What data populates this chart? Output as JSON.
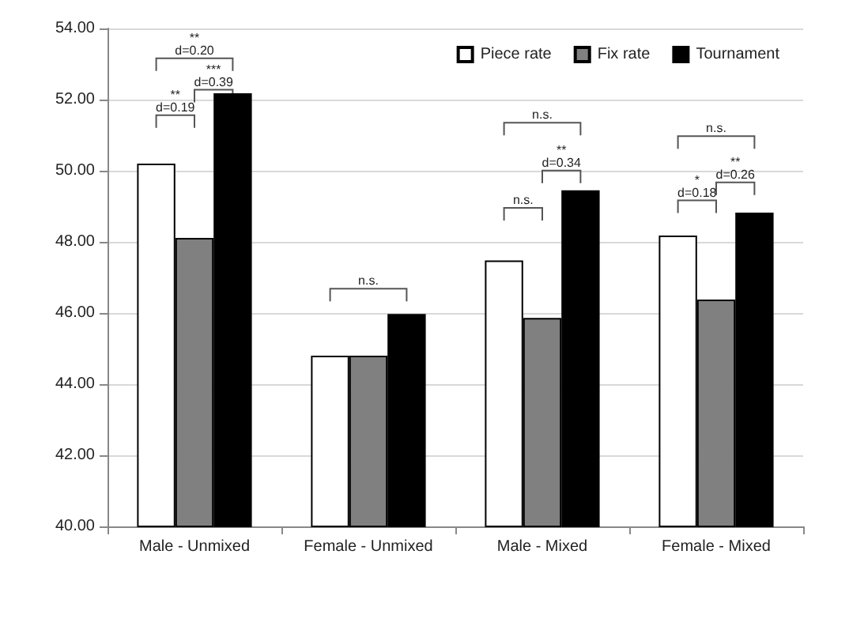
{
  "chart_data": {
    "type": "bar",
    "categories": [
      "Male - Unmixed",
      "Female - Unmixed",
      "Male - Mixed",
      "Female - Mixed"
    ],
    "series": [
      {
        "name": "Piece rate",
        "color": "#ffffff",
        "values": [
          50.2,
          44.8,
          47.48,
          48.18
        ]
      },
      {
        "name": "Fix rate",
        "color": "#808080",
        "values": [
          48.11,
          44.8,
          45.86,
          46.38
        ]
      },
      {
        "name": "Tournament",
        "color": "#000000",
        "values": [
          52.18,
          45.97,
          49.45,
          48.82
        ]
      }
    ],
    "ylim": [
      40,
      54
    ],
    "yticks": [
      {
        "value": 40,
        "label": "40.00"
      },
      {
        "value": 42,
        "label": "42.00"
      },
      {
        "value": 44,
        "label": "44.00"
      },
      {
        "value": 46,
        "label": "46.00"
      },
      {
        "value": 48,
        "label": "48.00"
      },
      {
        "value": 50,
        "label": "50.00"
      },
      {
        "value": 52,
        "label": "52.00"
      },
      {
        "value": 54,
        "label": "54.00"
      }
    ],
    "grid": "y",
    "legend": "top right",
    "annotations": [
      "**\nd=0.20",
      "**\nd=0.19",
      "***\nd=0.39",
      "n.s.",
      "n.s.",
      "n.s.",
      "**\nd=0.34",
      "n.s.",
      "*\nd=0.18",
      "**\nd=0.26"
    ]
  }
}
